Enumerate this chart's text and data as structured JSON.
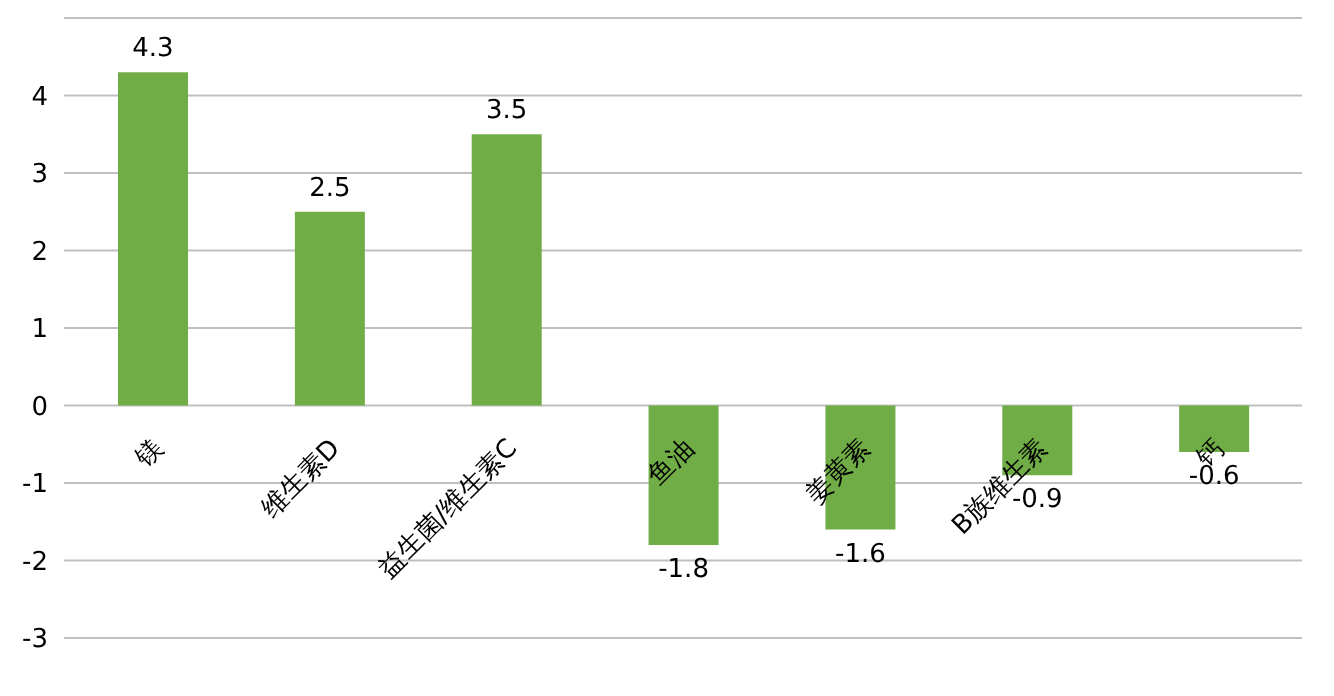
{
  "chart_data": {
    "type": "bar",
    "categories": [
      "镁",
      "维生素D",
      "益生菌/维生素C",
      "鱼油",
      "姜黄素",
      "B族维生素",
      "钙"
    ],
    "values": [
      4.3,
      2.5,
      3.5,
      -1.8,
      -1.6,
      -0.9,
      -0.6
    ],
    "color": "#70ad47",
    "ylim": [
      -3,
      5
    ],
    "yticks": [
      -3,
      -2,
      -1,
      0,
      1,
      2,
      3,
      4
    ],
    "grid": "y",
    "data_labels": true
  }
}
